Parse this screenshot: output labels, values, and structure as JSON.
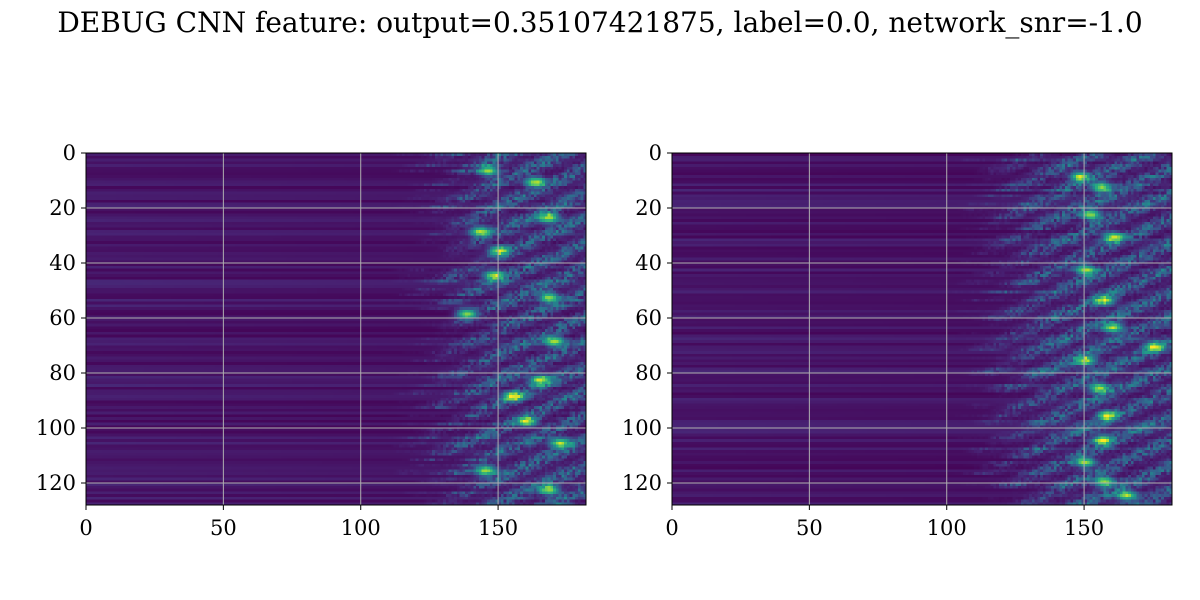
{
  "title": "DEBUG CNN feature: output=0.35107421875, label=0.0, network_snr=-1.0",
  "chart_data": [
    {
      "type": "heatmap",
      "title": "",
      "xlabel": "",
      "ylabel": "",
      "rows": 128,
      "cols": 182,
      "xlim": [
        0,
        182
      ],
      "ylim": [
        128,
        0
      ],
      "xticks": [
        0,
        50,
        100,
        150
      ],
      "yticks": [
        0,
        20,
        40,
        60,
        80,
        100,
        120
      ],
      "grid": true,
      "colormap": "viridis",
      "activation_onset_col": 120,
      "hotspots": [
        [
          6,
          146
        ],
        [
          10,
          163
        ],
        [
          23,
          168
        ],
        [
          28,
          143
        ],
        [
          35,
          150
        ],
        [
          44,
          148
        ],
        [
          52,
          168
        ],
        [
          58,
          138
        ],
        [
          68,
          170
        ],
        [
          82,
          165
        ],
        [
          88,
          155
        ],
        [
          97,
          160
        ],
        [
          105,
          172
        ],
        [
          115,
          145
        ],
        [
          122,
          168
        ]
      ]
    },
    {
      "type": "heatmap",
      "title": "",
      "xlabel": "",
      "ylabel": "",
      "rows": 128,
      "cols": 182,
      "xlim": [
        0,
        182
      ],
      "ylim": [
        128,
        0
      ],
      "xticks": [
        0,
        50,
        100,
        150
      ],
      "yticks": [
        0,
        20,
        40,
        60,
        80,
        100,
        120
      ],
      "grid": true,
      "colormap": "viridis",
      "activation_onset_col": 112,
      "hotspots": [
        [
          8,
          148
        ],
        [
          12,
          156
        ],
        [
          22,
          152
        ],
        [
          30,
          160
        ],
        [
          42,
          150
        ],
        [
          53,
          157
        ],
        [
          63,
          160
        ],
        [
          70,
          175
        ],
        [
          75,
          150
        ],
        [
          85,
          155
        ],
        [
          95,
          158
        ],
        [
          104,
          156
        ],
        [
          112,
          150
        ],
        [
          119,
          157
        ],
        [
          124,
          165
        ]
      ]
    }
  ]
}
